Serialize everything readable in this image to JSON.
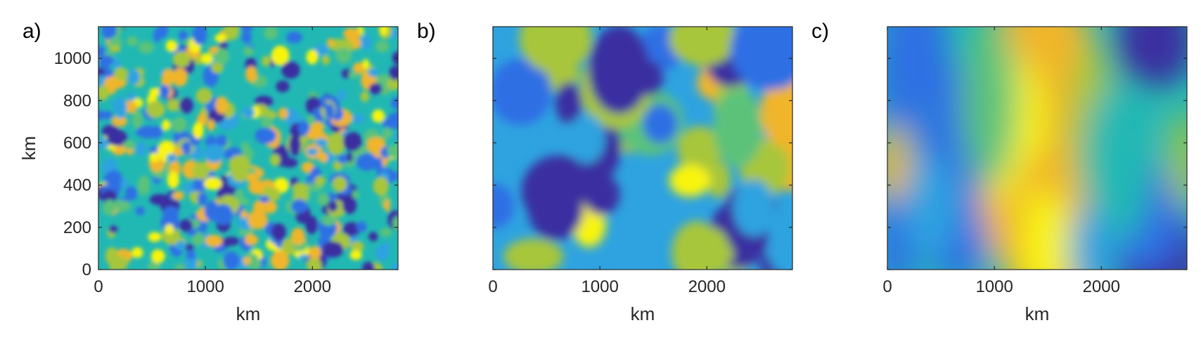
{
  "chart_data": [
    {
      "type": "heatmap",
      "panel_label": "a)",
      "xlabel": "km",
      "ylabel": "km",
      "xlim": [
        0,
        2800
      ],
      "ylim": [
        0,
        1150
      ],
      "xticks": [
        0,
        1000,
        2000
      ],
      "yticks": [
        0,
        200,
        400,
        600,
        800,
        1000
      ],
      "y_tick_labels_shown": true,
      "field": "random fine-scale correlated field",
      "colormap": "parula"
    },
    {
      "type": "heatmap",
      "panel_label": "b)",
      "xlabel": "km",
      "ylabel": "",
      "xlim": [
        0,
        2800
      ],
      "ylim": [
        0,
        1150
      ],
      "xticks": [
        0,
        1000,
        2000
      ],
      "yticks": [
        0,
        200,
        400,
        600,
        800,
        1000
      ],
      "y_tick_labels_shown": false,
      "field": "random medium-scale correlated field",
      "colormap": "parula"
    },
    {
      "type": "heatmap",
      "panel_label": "c)",
      "xlabel": "km",
      "ylabel": "",
      "xlim": [
        0,
        2800
      ],
      "ylim": [
        0,
        1150
      ],
      "xticks": [
        0,
        1000,
        2000
      ],
      "yticks": [
        0,
        200,
        400,
        600,
        800,
        1000
      ],
      "y_tick_labels_shown": false,
      "field": "random large-scale correlated field",
      "colormap": "parula"
    }
  ],
  "colors": {
    "dark_blue": "#3b2fa0",
    "blue": "#2f6fe4",
    "light_blue": "#2ea3e0",
    "teal": "#21b8b4",
    "green": "#5cc27a",
    "yellow_green": "#a8c63a",
    "orange": "#f0b52a",
    "yellow": "#f8f40e"
  }
}
